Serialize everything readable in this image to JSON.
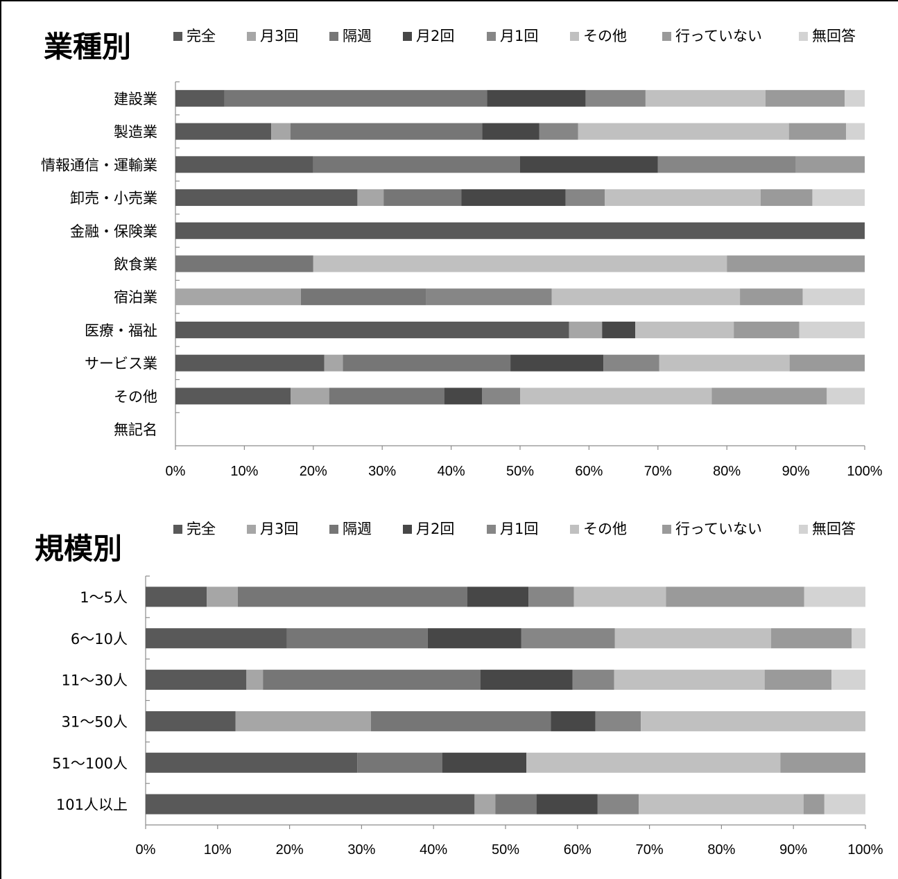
{
  "chart_data": [
    {
      "type": "bar",
      "orientation": "horizontal",
      "stacked": "percent",
      "title": "業種別",
      "legend_position": "top",
      "categories": [
        "建設業",
        "製造業",
        "情報通信・運輸業",
        "卸売・小売業",
        "金融・保険業",
        "飲食業",
        "宿泊業",
        "医療・福祉",
        "サービス業",
        "その他",
        "無記名"
      ],
      "series": [
        {
          "name": "完全",
          "color": "#595959",
          "values": [
            7.1,
            13.9,
            20,
            26.4,
            100,
            0,
            0,
            57.1,
            21.6,
            16.7,
            0
          ]
        },
        {
          "name": "月3回",
          "color": "#a6a6a6",
          "values": [
            0,
            2.8,
            0,
            3.8,
            0,
            0,
            18.2,
            4.8,
            2.7,
            5.6,
            0
          ]
        },
        {
          "name": "隔週",
          "color": "#767676",
          "values": [
            38.1,
            27.8,
            30,
            11.3,
            0,
            20,
            18.2,
            0,
            24.3,
            16.7,
            0
          ]
        },
        {
          "name": "月2回",
          "color": "#474747",
          "values": [
            14.3,
            8.3,
            20,
            15.1,
            0,
            0,
            0,
            4.8,
            13.5,
            5.5,
            0
          ]
        },
        {
          "name": "月1回",
          "color": "#868686",
          "values": [
            8.7,
            5.6,
            20,
            5.7,
            0,
            0,
            18.2,
            0,
            8.1,
            5.5,
            0
          ]
        },
        {
          "name": "その他",
          "color": "#c0c0c0",
          "values": [
            17.4,
            30.6,
            0,
            22.6,
            0,
            60,
            27.3,
            14.3,
            18.9,
            27.8,
            0
          ]
        },
        {
          "name": "行っていない",
          "color": "#9a9a9a",
          "values": [
            11.5,
            8.3,
            10,
            7.5,
            0,
            20,
            9.1,
            9.5,
            10.9,
            16.7,
            0
          ]
        },
        {
          "name": "無回答",
          "color": "#d3d3d3",
          "values": [
            2.9,
            2.7,
            0,
            7.6,
            0,
            0,
            9.0,
            9.5,
            0,
            5.5,
            0
          ]
        }
      ],
      "x_ticks": [
        "0%",
        "10%",
        "20%",
        "30%",
        "40%",
        "50%",
        "60%",
        "70%",
        "80%",
        "90%",
        "100%"
      ],
      "xlim": [
        0,
        100
      ]
    },
    {
      "type": "bar",
      "orientation": "horizontal",
      "stacked": "percent",
      "title": "規模別",
      "legend_position": "top",
      "categories": [
        "1〜5人",
        "6〜10人",
        "11〜30人",
        "31〜50人",
        "51〜100人",
        "101人以上"
      ],
      "series": [
        {
          "name": "完全",
          "color": "#595959",
          "values": [
            8.5,
            19.6,
            14,
            12.5,
            29.4,
            45.7
          ]
        },
        {
          "name": "月3回",
          "color": "#a6a6a6",
          "values": [
            4.3,
            0,
            2.3,
            18.8,
            0,
            2.9
          ]
        },
        {
          "name": "隔週",
          "color": "#767676",
          "values": [
            31.9,
            19.6,
            30.2,
            25,
            11.8,
            5.7
          ]
        },
        {
          "name": "月2回",
          "color": "#474747",
          "values": [
            8.5,
            13,
            12.8,
            6.2,
            11.7,
            8.5
          ]
        },
        {
          "name": "月1回",
          "color": "#868686",
          "values": [
            6.3,
            13,
            5.8,
            6.3,
            0,
            5.7
          ]
        },
        {
          "name": "その他",
          "color": "#c0c0c0",
          "values": [
            12.8,
            21.7,
            20.9,
            31.2,
            35.3,
            22.9
          ]
        },
        {
          "name": "行っていない",
          "color": "#9a9a9a",
          "values": [
            19.2,
            11.2,
            9.3,
            0,
            11.8,
            2.9
          ]
        },
        {
          "name": "無回答",
          "color": "#d3d3d3",
          "values": [
            8.5,
            1.9,
            4.7,
            0,
            0,
            5.7
          ]
        }
      ],
      "x_ticks": [
        "0%",
        "10%",
        "20%",
        "30%",
        "40%",
        "50%",
        "60%",
        "70%",
        "80%",
        "90%",
        "100%"
      ],
      "xlim": [
        0,
        100
      ]
    }
  ]
}
